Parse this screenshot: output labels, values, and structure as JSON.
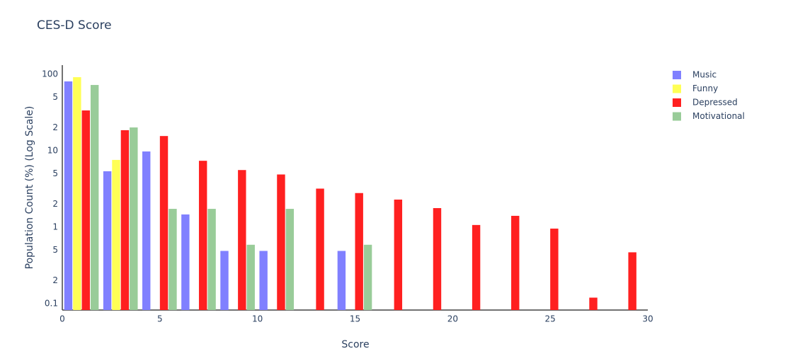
{
  "chart_data": {
    "type": "bar",
    "title": "CES-D Score",
    "x_label": "Score",
    "y_label": "Population Count (%) (Log Scale)",
    "x": [
      1,
      3,
      5,
      7,
      9,
      11,
      13,
      15,
      17,
      19,
      21,
      23,
      25,
      27,
      29
    ],
    "bin_width": 2,
    "series": [
      {
        "name": "Music",
        "color": "#8080ff",
        "values": [
          80.8,
          5.4,
          9.8,
          1.47,
          0.49,
          0.49,
          null,
          0.49,
          null,
          null,
          null,
          null,
          null,
          null,
          null
        ]
      },
      {
        "name": "Funny",
        "color": "#ffff55",
        "values": [
          91.8,
          7.6,
          null,
          null,
          null,
          null,
          null,
          null,
          null,
          null,
          null,
          null,
          null,
          null,
          null
        ]
      },
      {
        "name": "Depressed",
        "color": "#ff2020",
        "values": [
          33.7,
          18.6,
          15.6,
          7.4,
          5.6,
          4.9,
          3.2,
          2.8,
          2.3,
          1.78,
          1.07,
          1.41,
          0.96,
          0.12,
          0.47
        ]
      },
      {
        "name": "Motivational",
        "color": "#99cc99",
        "values": [
          72.6,
          20.2,
          1.74,
          1.74,
          0.59,
          1.74,
          null,
          0.59,
          null,
          null,
          null,
          null,
          null,
          null,
          null
        ]
      }
    ],
    "xlim": [
      0,
      30
    ],
    "xticks": [
      0,
      5,
      10,
      15,
      20,
      25,
      30
    ],
    "ylim": [
      0.0826,
      132
    ],
    "yscale": "log",
    "yticks": [
      0.1,
      {
        "value": 0.2,
        "label": "2"
      },
      {
        "value": 0.5,
        "label": "5"
      },
      1,
      2,
      5,
      10,
      {
        "value": 20,
        "label": "2"
      },
      {
        "value": 50,
        "label": "5"
      },
      100
    ],
    "grid": false,
    "legend_position": "right"
  }
}
